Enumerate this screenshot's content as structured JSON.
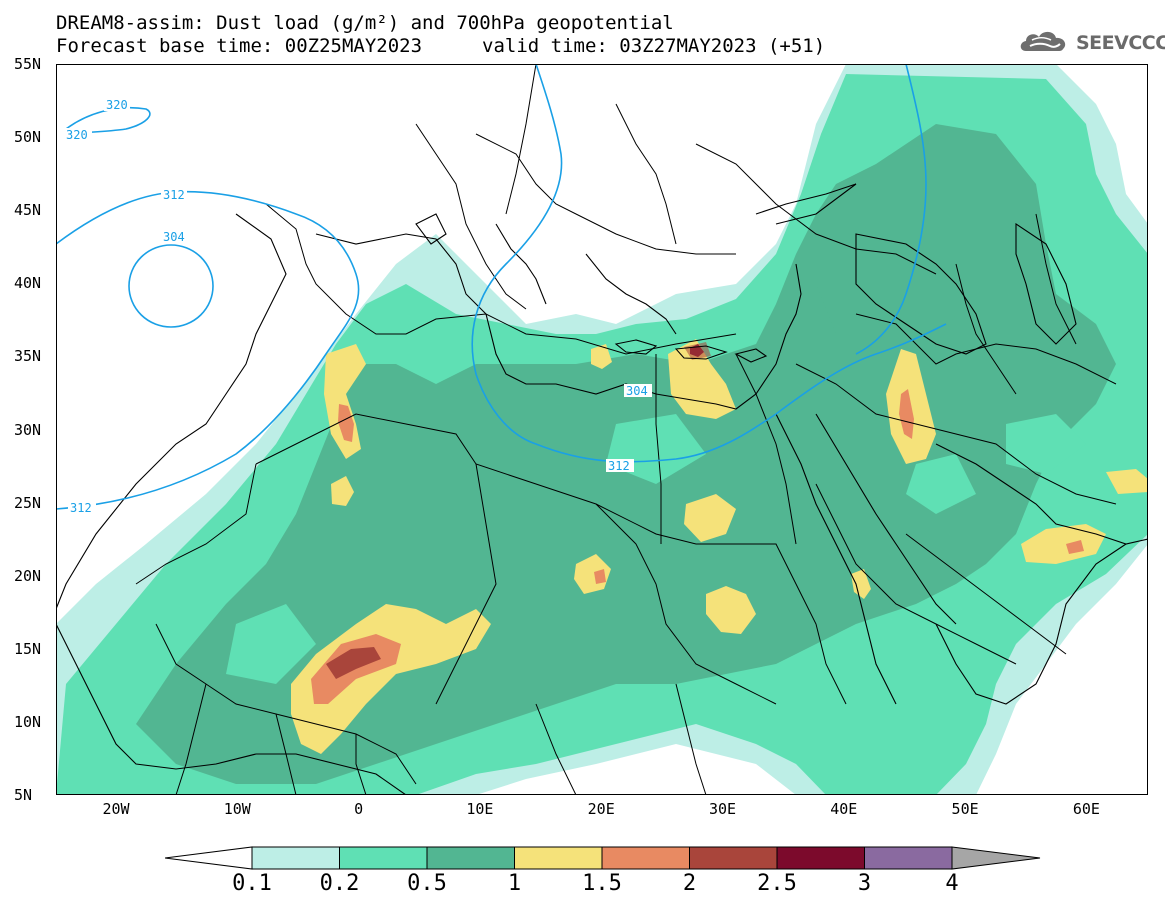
{
  "header": {
    "title": "DREAM8-assim: Dust load (g/m²) and 700hPa geopotential",
    "base_time": "Forecast base time: 00Z25MAY2023",
    "valid_time": "valid time: 03Z27MAY2023 (+51)"
  },
  "logo": {
    "text": "SEEVCCC",
    "icon": "cloud-icon"
  },
  "map": {
    "latitude_labels": [
      "55N",
      "50N",
      "45N",
      "40N",
      "35N",
      "30N",
      "25N",
      "20N",
      "15N",
      "10N",
      "5N"
    ],
    "longitude_labels": [
      "20W",
      "10W",
      "0",
      "10E",
      "20E",
      "30E",
      "40E",
      "50E",
      "60E"
    ],
    "geopotential_labels": {
      "c320a": "320",
      "c320b": "320",
      "c312a": "312",
      "c304": "304",
      "c312b": "312",
      "c304b": "304",
      "c312c": "312"
    }
  },
  "colorbar": {
    "labels": [
      "0.1",
      "0.2",
      "0.5",
      "1",
      "1.5",
      "2",
      "2.5",
      "3",
      "4"
    ],
    "colors": [
      "#bdeee6",
      "#5fe0b4",
      "#52b692",
      "#f5e27a",
      "#e88a62",
      "#a9453b",
      "#7c0a2c",
      "#8a6aa0",
      "#a6a6a6"
    ]
  },
  "colors": {
    "contour": "#1aa0e6",
    "border": "#000000",
    "background": "#ffffff"
  }
}
